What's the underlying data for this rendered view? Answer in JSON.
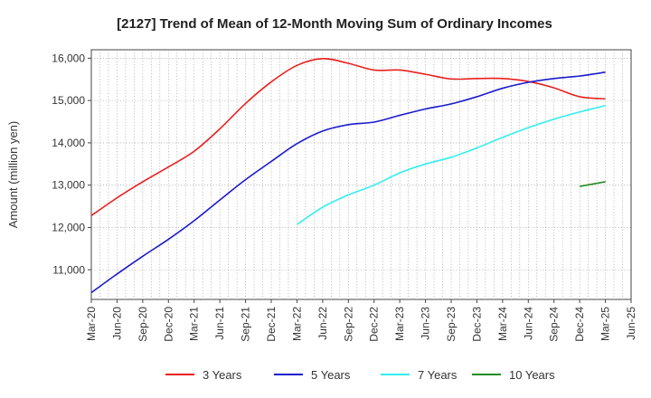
{
  "chart_data": {
    "type": "line",
    "title": "[2127]  Trend of Mean of 12-Month Moving Sum of Ordinary Incomes",
    "xlabel": "",
    "ylabel": "Amount (million yen)",
    "ylim": [
      10300,
      16200
    ],
    "yticks": [
      11000,
      12000,
      13000,
      14000,
      15000,
      16000
    ],
    "ytick_labels": [
      "11,000",
      "12,000",
      "13,000",
      "14,000",
      "15,000",
      "16,000"
    ],
    "x_start": "Mar-20",
    "x_end": "Jun-25",
    "xticks": [
      "Mar-20",
      "Jun-20",
      "Sep-20",
      "Dec-20",
      "Mar-21",
      "Jun-21",
      "Sep-21",
      "Dec-21",
      "Mar-22",
      "Jun-22",
      "Sep-22",
      "Dec-22",
      "Mar-23",
      "Jun-23",
      "Sep-23",
      "Dec-23",
      "Mar-24",
      "Jun-24",
      "Sep-24",
      "Dec-24",
      "Mar-25",
      "Jun-25"
    ],
    "grid": true,
    "legend_position": "bottom",
    "series": [
      {
        "name": "3 Years",
        "color": "#e8201e",
        "x": [
          "Mar-20",
          "Jun-20",
          "Sep-20",
          "Dec-20",
          "Mar-21",
          "Jun-21",
          "Sep-21",
          "Dec-21",
          "Mar-22",
          "Jun-22",
          "Sep-22",
          "Dec-22",
          "Mar-23",
          "Jun-23",
          "Sep-23",
          "Dec-23",
          "Mar-24",
          "Jun-24",
          "Sep-24",
          "Dec-24",
          "Mar-25"
        ],
        "values": [
          12280,
          12700,
          13080,
          13430,
          13800,
          14330,
          14930,
          15440,
          15830,
          15990,
          15880,
          15720,
          15720,
          15620,
          15510,
          15520,
          15520,
          15450,
          15300,
          15090,
          15040
        ]
      },
      {
        "name": "5 Years",
        "color": "#1a1acd",
        "x": [
          "Mar-20",
          "Jun-20",
          "Sep-20",
          "Dec-20",
          "Mar-21",
          "Jun-21",
          "Sep-21",
          "Dec-21",
          "Mar-22",
          "Jun-22",
          "Sep-22",
          "Dec-22",
          "Mar-23",
          "Jun-23",
          "Sep-23",
          "Dec-23",
          "Mar-24",
          "Jun-24",
          "Sep-24",
          "Dec-24",
          "Mar-25"
        ],
        "values": [
          10460,
          10900,
          11320,
          11720,
          12160,
          12650,
          13130,
          13560,
          13980,
          14280,
          14430,
          14490,
          14650,
          14800,
          14920,
          15090,
          15290,
          15430,
          15520,
          15580,
          15670
        ]
      },
      {
        "name": "7 Years",
        "color": "#33eef0",
        "x": [
          "Mar-22",
          "Jun-22",
          "Sep-22",
          "Dec-22",
          "Mar-23",
          "Jun-23",
          "Sep-23",
          "Dec-23",
          "Mar-24",
          "Jun-24",
          "Sep-24",
          "Dec-24",
          "Mar-25"
        ],
        "values": [
          12070,
          12480,
          12770,
          13000,
          13290,
          13500,
          13660,
          13880,
          14130,
          14360,
          14560,
          14730,
          14880
        ]
      },
      {
        "name": "10 Years",
        "color": "#228b22",
        "x": [
          "Dec-24",
          "Mar-25"
        ],
        "values": [
          12970,
          13080
        ]
      }
    ]
  }
}
